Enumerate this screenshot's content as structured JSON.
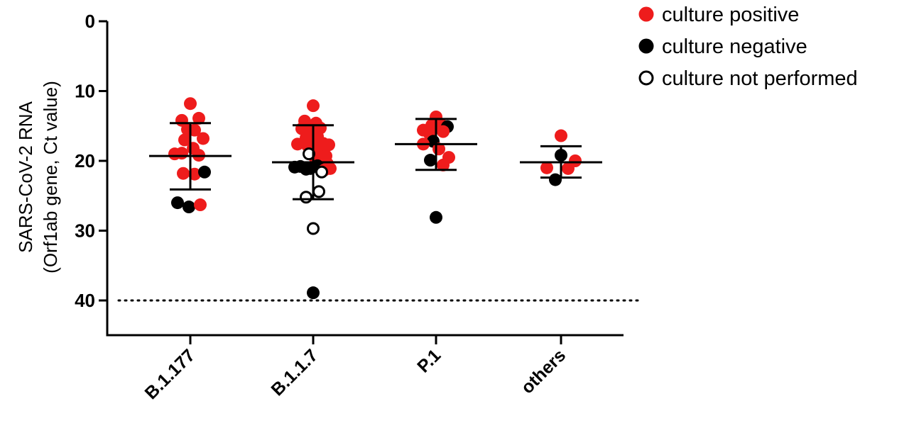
{
  "chart_data": {
    "type": "scatter",
    "ylabel_line1": "SARS-CoV-2 RNA",
    "ylabel_line2": "(Orf1ab gene, Ct value)",
    "y_inverted": true,
    "ylim": [
      0,
      45
    ],
    "yticks": [
      0,
      10,
      20,
      30,
      40
    ],
    "ytick_labels": [
      "0",
      "10",
      "20",
      "30",
      "40"
    ],
    "reference_line": {
      "y": 40,
      "style": "dotted"
    },
    "categories": [
      "B.1.177",
      "B.1.1.7",
      "P.1",
      "others"
    ],
    "colors": {
      "culture_positive": "#ee1c1c",
      "culture_negative": "#000000",
      "culture_not_performed": "#ffffff"
    },
    "legend": {
      "placement": "top-right",
      "entries": [
        {
          "key": "culture_positive",
          "label": "culture positive"
        },
        {
          "key": "culture_negative",
          "label": "culture negative"
        },
        {
          "key": "culture_not_performed",
          "label": "culture not performed"
        }
      ]
    },
    "groups": [
      {
        "category": "B.1.177",
        "mean": 19.3,
        "sd_low": 14.6,
        "sd_high": 24.1,
        "points": [
          {
            "j": 0.0,
            "y": 11.8,
            "s": "pos"
          },
          {
            "j": -0.6,
            "y": 14.2,
            "s": "pos"
          },
          {
            "j": 0.6,
            "y": 13.9,
            "s": "pos"
          },
          {
            "j": -0.2,
            "y": 15.5,
            "s": "pos"
          },
          {
            "j": 0.3,
            "y": 15.6,
            "s": "pos"
          },
          {
            "j": -0.4,
            "y": 17.0,
            "s": "pos"
          },
          {
            "j": 0.9,
            "y": 16.8,
            "s": "pos"
          },
          {
            "j": 0.2,
            "y": 18.2,
            "s": "pos"
          },
          {
            "j": -1.1,
            "y": 19.0,
            "s": "pos"
          },
          {
            "j": -0.6,
            "y": 18.9,
            "s": "pos"
          },
          {
            "j": 0.6,
            "y": 19.2,
            "s": "pos"
          },
          {
            "j": -0.5,
            "y": 21.8,
            "s": "pos"
          },
          {
            "j": 0.3,
            "y": 21.9,
            "s": "pos"
          },
          {
            "j": 1.0,
            "y": 21.6,
            "s": "neg"
          },
          {
            "j": -0.9,
            "y": 26.0,
            "s": "neg"
          },
          {
            "j": -0.1,
            "y": 26.6,
            "s": "neg"
          },
          {
            "j": 0.7,
            "y": 26.3,
            "s": "pos"
          }
        ]
      },
      {
        "category": "B.1.1.7",
        "mean": 20.2,
        "sd_low": 14.9,
        "sd_high": 25.5,
        "points": [
          {
            "j": 0.0,
            "y": 12.1,
            "s": "pos"
          },
          {
            "j": -0.6,
            "y": 14.3,
            "s": "pos"
          },
          {
            "j": 0.2,
            "y": 14.6,
            "s": "pos"
          },
          {
            "j": -0.8,
            "y": 15.4,
            "s": "pos"
          },
          {
            "j": -0.3,
            "y": 15.7,
            "s": "pos"
          },
          {
            "j": 0.5,
            "y": 15.3,
            "s": "pos"
          },
          {
            "j": -0.5,
            "y": 16.7,
            "s": "pos"
          },
          {
            "j": 0.3,
            "y": 16.5,
            "s": "pos"
          },
          {
            "j": -1.1,
            "y": 17.6,
            "s": "pos"
          },
          {
            "j": -0.4,
            "y": 17.8,
            "s": "pos"
          },
          {
            "j": 0.1,
            "y": 17.6,
            "s": "pos"
          },
          {
            "j": 0.7,
            "y": 17.5,
            "s": "pos"
          },
          {
            "j": 1.1,
            "y": 17.7,
            "s": "pos"
          },
          {
            "j": -0.1,
            "y": 19.1,
            "s": "pos"
          },
          {
            "j": 0.5,
            "y": 18.7,
            "s": "pos"
          },
          {
            "j": 0.9,
            "y": 19.3,
            "s": "pos"
          },
          {
            "j": 0.2,
            "y": 20.0,
            "s": "pos"
          },
          {
            "j": 0.6,
            "y": 20.2,
            "s": "pos"
          },
          {
            "j": 1.0,
            "y": 20.4,
            "s": "pos"
          },
          {
            "j": -1.3,
            "y": 20.9,
            "s": "neg"
          },
          {
            "j": -0.9,
            "y": 20.8,
            "s": "neg"
          },
          {
            "j": -0.5,
            "y": 21.2,
            "s": "neg"
          },
          {
            "j": -0.2,
            "y": 21.1,
            "s": "neg"
          },
          {
            "j": 0.3,
            "y": 20.7,
            "s": "neg"
          },
          {
            "j": 0.8,
            "y": 21.3,
            "s": "pos"
          },
          {
            "j": 1.2,
            "y": 21.1,
            "s": "pos"
          },
          {
            "j": -0.3,
            "y": 19.0,
            "s": "open"
          },
          {
            "j": 0.6,
            "y": 21.6,
            "s": "open"
          },
          {
            "j": -0.5,
            "y": 25.2,
            "s": "open"
          },
          {
            "j": 0.4,
            "y": 24.4,
            "s": "open"
          },
          {
            "j": 0.0,
            "y": 29.7,
            "s": "open"
          },
          {
            "j": 0.0,
            "y": 38.9,
            "s": "neg"
          }
        ]
      },
      {
        "category": "P.1",
        "mean": 17.6,
        "sd_low": 14.0,
        "sd_high": 21.3,
        "points": [
          {
            "j": 0.0,
            "y": 13.7,
            "s": "pos"
          },
          {
            "j": -0.3,
            "y": 14.9,
            "s": "pos"
          },
          {
            "j": 0.3,
            "y": 14.7,
            "s": "pos"
          },
          {
            "j": 0.8,
            "y": 15.1,
            "s": "neg"
          },
          {
            "j": -0.9,
            "y": 15.6,
            "s": "pos"
          },
          {
            "j": -0.5,
            "y": 16.0,
            "s": "pos"
          },
          {
            "j": 0.5,
            "y": 15.8,
            "s": "pos"
          },
          {
            "j": -0.2,
            "y": 17.2,
            "s": "neg"
          },
          {
            "j": -0.9,
            "y": 17.6,
            "s": "pos"
          },
          {
            "j": 0.2,
            "y": 18.3,
            "s": "pos"
          },
          {
            "j": 0.9,
            "y": 19.5,
            "s": "pos"
          },
          {
            "j": -0.4,
            "y": 19.9,
            "s": "neg"
          },
          {
            "j": 0.5,
            "y": 20.6,
            "s": "pos"
          },
          {
            "j": 0.0,
            "y": 28.1,
            "s": "neg"
          }
        ]
      },
      {
        "category": "others",
        "mean": 20.2,
        "sd_low": 17.9,
        "sd_high": 22.4,
        "points": [
          {
            "j": 0.0,
            "y": 16.4,
            "s": "pos"
          },
          {
            "j": 0.0,
            "y": 19.2,
            "s": "neg"
          },
          {
            "j": 1.0,
            "y": 20.0,
            "s": "pos"
          },
          {
            "j": -1.0,
            "y": 21.0,
            "s": "pos"
          },
          {
            "j": 0.5,
            "y": 21.1,
            "s": "pos"
          },
          {
            "j": -0.4,
            "y": 22.7,
            "s": "neg"
          }
        ]
      }
    ]
  }
}
